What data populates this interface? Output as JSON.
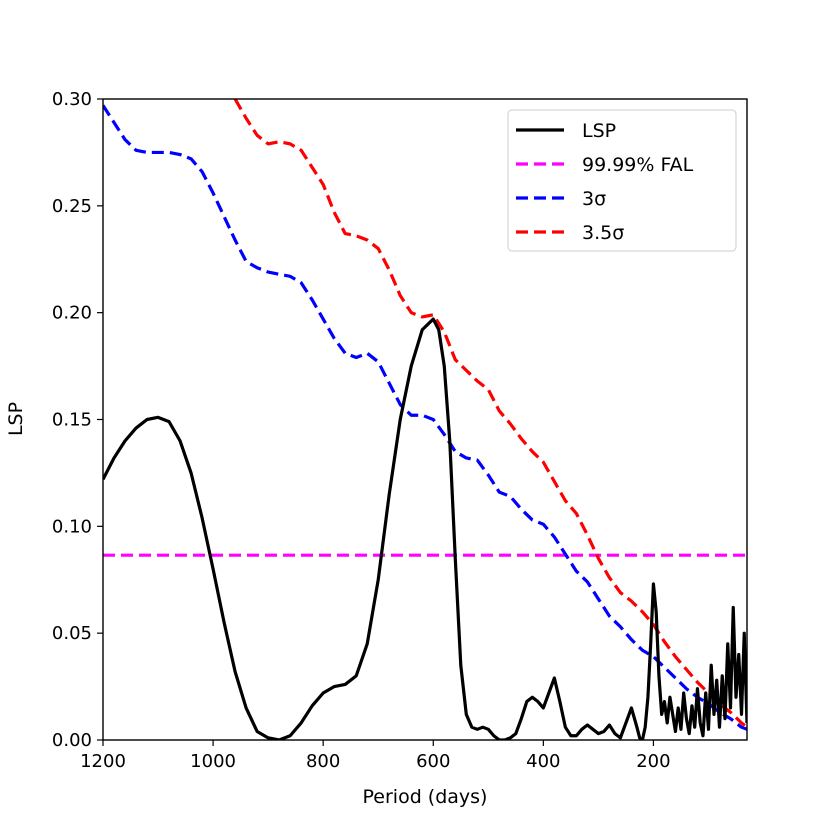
{
  "chart_data": {
    "type": "line",
    "xlabel": "Period (days)",
    "ylabel": "LSP",
    "xlim": [
      1200,
      30
    ],
    "ylim": [
      0,
      0.3
    ],
    "x_ticks": [
      1200,
      1000,
      800,
      600,
      400,
      200
    ],
    "x_tick_labels": [
      "1200",
      "1000",
      "800",
      "600",
      "400",
      "200"
    ],
    "y_ticks": [
      0,
      0.05,
      0.1,
      0.15,
      0.2,
      0.25,
      0.3
    ],
    "y_tick_labels": [
      "0.00",
      "0.05",
      "0.10",
      "0.15",
      "0.20",
      "0.25",
      "0.30"
    ],
    "legend_position": "top-right",
    "series": [
      {
        "name": "LSP",
        "label": "LSP",
        "style": "solid",
        "color": "#000000",
        "x": [
          1200,
          1180,
          1160,
          1140,
          1120,
          1100,
          1080,
          1060,
          1040,
          1020,
          1000,
          980,
          960,
          940,
          920,
          900,
          880,
          860,
          840,
          820,
          800,
          780,
          760,
          740,
          720,
          700,
          680,
          660,
          640,
          620,
          600,
          590,
          580,
          570,
          560,
          550,
          540,
          530,
          520,
          510,
          500,
          490,
          480,
          470,
          460,
          450,
          440,
          430,
          420,
          410,
          400,
          390,
          380,
          370,
          360,
          350,
          340,
          330,
          320,
          310,
          300,
          290,
          280,
          270,
          260,
          250,
          240,
          230,
          225,
          220,
          215,
          210,
          205,
          200,
          195,
          190,
          185,
          180,
          175,
          170,
          165,
          160,
          155,
          150,
          145,
          140,
          135,
          130,
          125,
          120,
          115,
          110,
          105,
          100,
          95,
          90,
          85,
          80,
          75,
          70,
          65,
          60,
          55,
          50,
          45,
          40,
          35,
          30
        ],
        "values": [
          0.122,
          0.132,
          0.14,
          0.146,
          0.15,
          0.151,
          0.149,
          0.14,
          0.125,
          0.104,
          0.08,
          0.055,
          0.032,
          0.015,
          0.004,
          0.001,
          0.0,
          0.002,
          0.008,
          0.016,
          0.022,
          0.025,
          0.026,
          0.03,
          0.045,
          0.075,
          0.115,
          0.15,
          0.175,
          0.192,
          0.197,
          0.192,
          0.175,
          0.14,
          0.085,
          0.035,
          0.012,
          0.006,
          0.005,
          0.006,
          0.005,
          0.002,
          0.0,
          0.0,
          0.001,
          0.003,
          0.01,
          0.018,
          0.02,
          0.018,
          0.015,
          0.022,
          0.029,
          0.018,
          0.006,
          0.002,
          0.002,
          0.005,
          0.007,
          0.005,
          0.003,
          0.004,
          0.007,
          0.003,
          0.001,
          0.008,
          0.015,
          0.006,
          0.001,
          0.0,
          0.006,
          0.02,
          0.045,
          0.073,
          0.06,
          0.03,
          0.012,
          0.018,
          0.008,
          0.02,
          0.012,
          0.004,
          0.015,
          0.005,
          0.022,
          0.01,
          0.003,
          0.016,
          0.006,
          0.024,
          0.008,
          0.002,
          0.022,
          0.005,
          0.035,
          0.012,
          0.028,
          0.006,
          0.03,
          0.01,
          0.045,
          0.015,
          0.062,
          0.02,
          0.04,
          0.012,
          0.05,
          0.008
        ]
      },
      {
        "name": "FAL",
        "label": "99.99%  FAL",
        "style": "dashed",
        "color": "#ff00ff",
        "x": [
          1200,
          30
        ],
        "values": [
          0.0865,
          0.0865
        ]
      },
      {
        "name": "3sigma",
        "label": "3σ",
        "style": "dashed",
        "color": "#0000ff",
        "x": [
          1200,
          1180,
          1160,
          1140,
          1120,
          1100,
          1080,
          1060,
          1040,
          1020,
          1000,
          980,
          960,
          940,
          920,
          900,
          880,
          860,
          840,
          820,
          800,
          780,
          760,
          740,
          720,
          700,
          680,
          660,
          640,
          620,
          600,
          580,
          560,
          540,
          520,
          500,
          480,
          460,
          440,
          420,
          400,
          380,
          360,
          340,
          320,
          300,
          280,
          260,
          240,
          220,
          200,
          180,
          160,
          140,
          120,
          100,
          80,
          60,
          40,
          30
        ],
        "values": [
          0.297,
          0.289,
          0.281,
          0.276,
          0.275,
          0.275,
          0.275,
          0.274,
          0.272,
          0.266,
          0.256,
          0.245,
          0.234,
          0.224,
          0.221,
          0.219,
          0.218,
          0.217,
          0.214,
          0.206,
          0.197,
          0.188,
          0.181,
          0.179,
          0.181,
          0.177,
          0.167,
          0.157,
          0.152,
          0.152,
          0.15,
          0.143,
          0.135,
          0.132,
          0.131,
          0.124,
          0.116,
          0.114,
          0.108,
          0.103,
          0.101,
          0.095,
          0.087,
          0.079,
          0.074,
          0.066,
          0.058,
          0.053,
          0.047,
          0.042,
          0.039,
          0.034,
          0.029,
          0.024,
          0.02,
          0.017,
          0.013,
          0.01,
          0.006,
          0.005
        ]
      },
      {
        "name": "3.5sigma",
        "label": "3.5σ",
        "style": "dashed",
        "color": "#ff0000",
        "x": [
          960,
          940,
          920,
          900,
          880,
          860,
          840,
          820,
          800,
          780,
          760,
          740,
          720,
          700,
          680,
          660,
          640,
          620,
          600,
          580,
          560,
          540,
          520,
          500,
          480,
          460,
          440,
          420,
          400,
          380,
          360,
          340,
          320,
          300,
          280,
          260,
          240,
          220,
          200,
          180,
          160,
          140,
          120,
          100,
          80,
          60,
          40,
          30
        ],
        "values": [
          0.3,
          0.291,
          0.283,
          0.279,
          0.28,
          0.279,
          0.276,
          0.268,
          0.26,
          0.247,
          0.237,
          0.236,
          0.234,
          0.23,
          0.22,
          0.208,
          0.2,
          0.198,
          0.199,
          0.191,
          0.178,
          0.173,
          0.168,
          0.164,
          0.154,
          0.148,
          0.141,
          0.135,
          0.13,
          0.121,
          0.112,
          0.106,
          0.096,
          0.085,
          0.076,
          0.069,
          0.065,
          0.06,
          0.054,
          0.046,
          0.039,
          0.033,
          0.027,
          0.022,
          0.017,
          0.013,
          0.008,
          0.006
        ]
      }
    ]
  }
}
